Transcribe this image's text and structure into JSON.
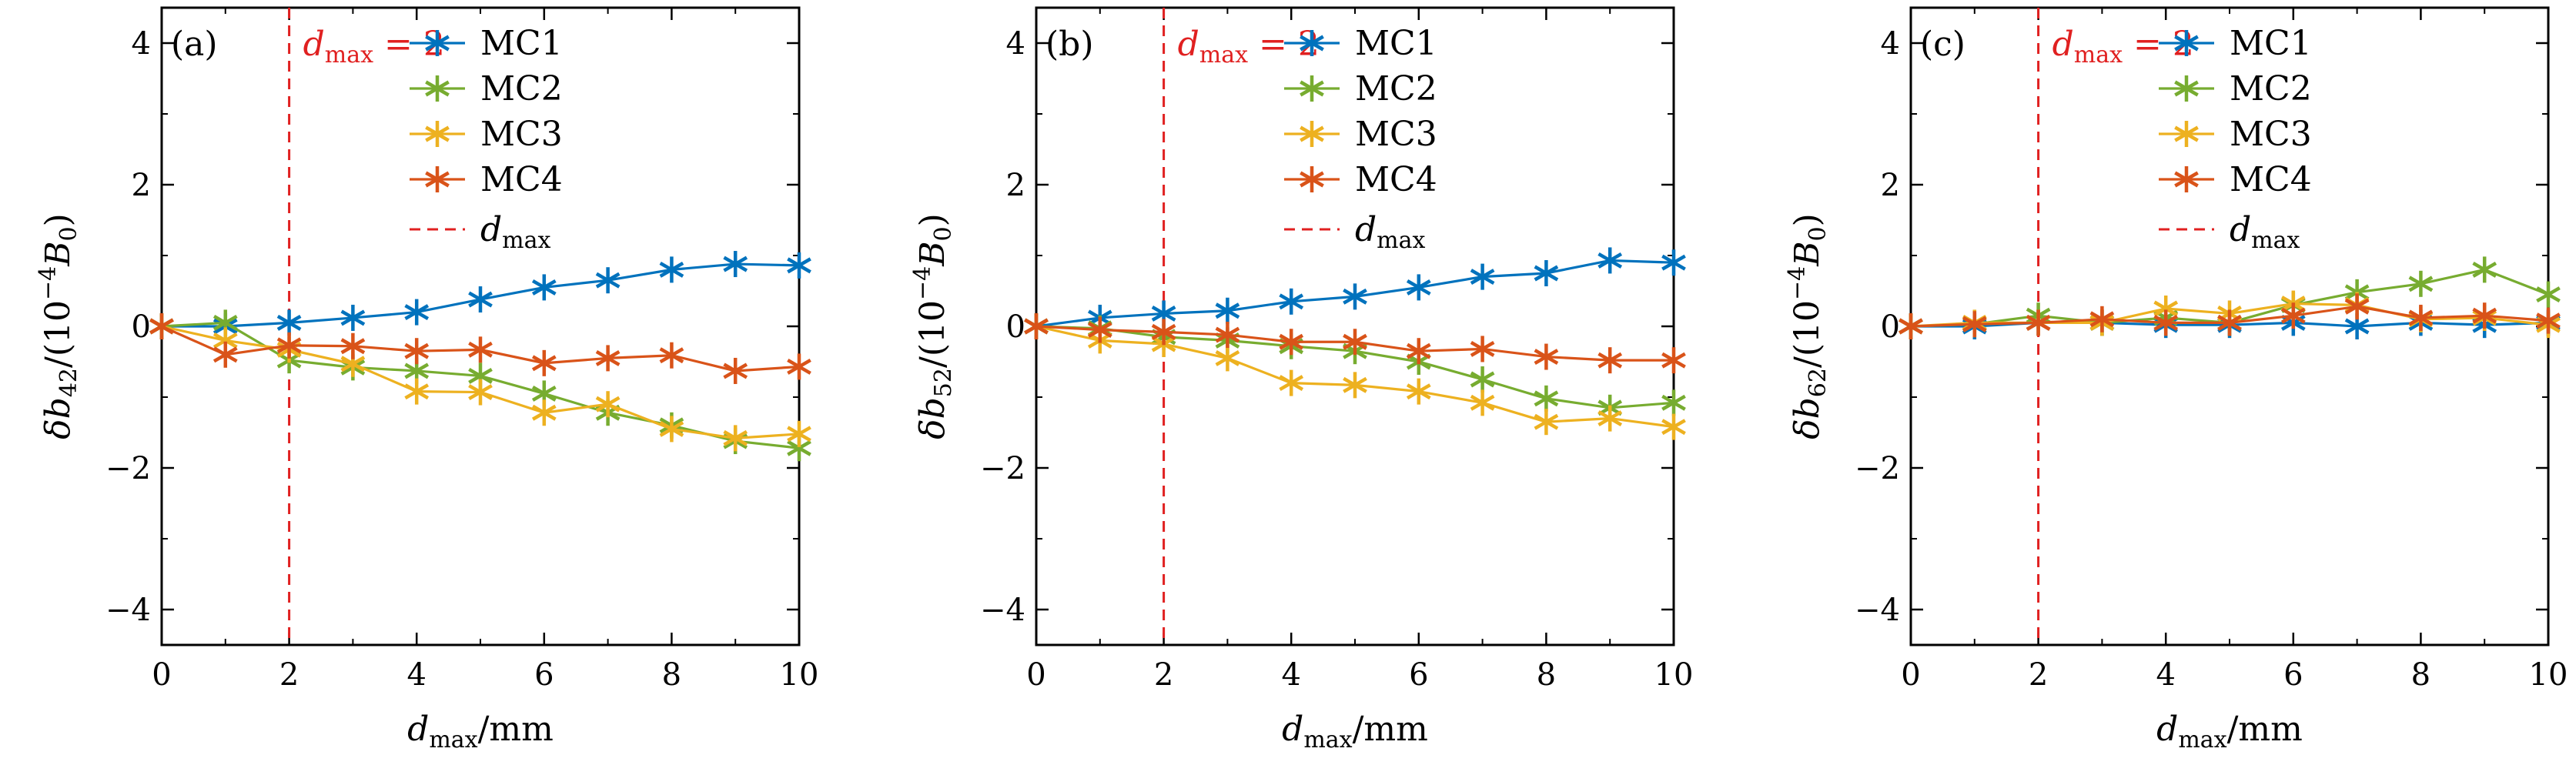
{
  "chart_data": [
    {
      "type": "line",
      "panel_label": "(a)",
      "xlabel": {
        "var": "d",
        "sub": "max",
        "rest": "/mm"
      },
      "ylabel": {
        "var": "δb",
        "sub": "42",
        "rest": "/(10",
        "sup": "−4",
        "rest2": "B",
        "sub2": "0",
        "close": ")"
      },
      "xlim": [
        0,
        10
      ],
      "ylim": [
        -4.5,
        4.5
      ],
      "x_ticks": [
        "0",
        "2",
        "4",
        "6",
        "8",
        "10"
      ],
      "y_ticks": [
        "−4",
        "−2",
        "0",
        "2",
        "4"
      ],
      "x": [
        0,
        1,
        2,
        3,
        4,
        5,
        6,
        7,
        8,
        9,
        10
      ],
      "series": [
        {
          "name": "MC1",
          "color": "#0072BD",
          "values": [
            0,
            0.0,
            0.05,
            0.12,
            0.2,
            0.38,
            0.55,
            0.65,
            0.8,
            0.88,
            0.86
          ]
        },
        {
          "name": "MC2",
          "color": "#77AC30",
          "values": [
            0,
            0.05,
            -0.48,
            -0.58,
            -0.63,
            -0.7,
            -0.95,
            -1.22,
            -1.4,
            -1.62,
            -1.72
          ]
        },
        {
          "name": "MC3",
          "color": "#EDB120",
          "values": [
            0,
            -0.2,
            -0.33,
            -0.53,
            -0.92,
            -0.93,
            -1.22,
            -1.1,
            -1.45,
            -1.58,
            -1.52
          ]
        },
        {
          "name": "MC4",
          "color": "#D95319",
          "values": [
            0,
            -0.4,
            -0.27,
            -0.28,
            -0.35,
            -0.33,
            -0.52,
            -0.45,
            -0.41,
            -0.63,
            -0.57
          ]
        }
      ],
      "vline": {
        "x": 2,
        "color": "#e02020",
        "label_var": "d",
        "label_sub": "max",
        "label_rest": " = 2",
        "legend_var": "d",
        "legend_sub": "max"
      }
    },
    {
      "type": "line",
      "panel_label": "(b)",
      "xlabel": {
        "var": "d",
        "sub": "max",
        "rest": "/mm"
      },
      "ylabel": {
        "var": "δb",
        "sub": "52",
        "rest": "/(10",
        "sup": "−4",
        "rest2": "B",
        "sub2": "0",
        "close": ")"
      },
      "xlim": [
        0,
        10
      ],
      "ylim": [
        -4.5,
        4.5
      ],
      "x_ticks": [
        "0",
        "2",
        "4",
        "6",
        "8",
        "10"
      ],
      "y_ticks": [
        "−4",
        "−2",
        "0",
        "2",
        "4"
      ],
      "x": [
        0,
        1,
        2,
        3,
        4,
        5,
        6,
        7,
        8,
        9,
        10
      ],
      "series": [
        {
          "name": "MC1",
          "color": "#0072BD",
          "values": [
            0,
            0.12,
            0.18,
            0.22,
            0.35,
            0.42,
            0.55,
            0.7,
            0.75,
            0.93,
            0.9
          ]
        },
        {
          "name": "MC2",
          "color": "#77AC30",
          "values": [
            0,
            -0.03,
            -0.15,
            -0.2,
            -0.28,
            -0.35,
            -0.5,
            -0.75,
            -1.02,
            -1.15,
            -1.08
          ]
        },
        {
          "name": "MC3",
          "color": "#EDB120",
          "values": [
            0,
            -0.2,
            -0.25,
            -0.45,
            -0.8,
            -0.83,
            -0.92,
            -1.08,
            -1.35,
            -1.3,
            -1.42
          ]
        },
        {
          "name": "MC4",
          "color": "#D95319",
          "values": [
            0,
            -0.05,
            -0.08,
            -0.12,
            -0.22,
            -0.22,
            -0.35,
            -0.32,
            -0.43,
            -0.48,
            -0.48
          ]
        }
      ],
      "vline": {
        "x": 2,
        "color": "#e02020",
        "label_var": "d",
        "label_sub": "max",
        "label_rest": " = 2",
        "legend_var": "d",
        "legend_sub": "max"
      }
    },
    {
      "type": "line",
      "panel_label": "(c)",
      "xlabel": {
        "var": "d",
        "sub": "max",
        "rest": "/mm"
      },
      "ylabel": {
        "var": "δb",
        "sub": "62",
        "rest": "/(10",
        "sup": "−4",
        "rest2": "B",
        "sub2": "0",
        "close": ")"
      },
      "xlim": [
        0,
        10
      ],
      "ylim": [
        -4.5,
        4.5
      ],
      "x_ticks": [
        "0",
        "2",
        "4",
        "6",
        "8",
        "10"
      ],
      "y_ticks": [
        "−4",
        "−2",
        "0",
        "2",
        "4"
      ],
      "x": [
        0,
        1,
        2,
        3,
        4,
        5,
        6,
        7,
        8,
        9,
        10
      ],
      "series": [
        {
          "name": "MC1",
          "color": "#0072BD",
          "values": [
            0,
            0.0,
            0.05,
            0.05,
            0.02,
            0.02,
            0.05,
            0.0,
            0.05,
            0.02,
            0.05
          ]
        },
        {
          "name": "MC2",
          "color": "#77AC30",
          "values": [
            0,
            0.03,
            0.15,
            0.05,
            0.12,
            0.05,
            0.3,
            0.48,
            0.6,
            0.8,
            0.45
          ]
        },
        {
          "name": "MC3",
          "color": "#EDB120",
          "values": [
            0,
            0.05,
            0.05,
            0.05,
            0.25,
            0.18,
            0.32,
            0.3,
            0.1,
            0.12,
            0.02
          ]
        },
        {
          "name": "MC4",
          "color": "#D95319",
          "values": [
            0,
            0.03,
            0.05,
            0.1,
            0.05,
            0.05,
            0.15,
            0.28,
            0.12,
            0.15,
            0.08
          ]
        }
      ],
      "vline": {
        "x": 2,
        "color": "#e02020",
        "label_var": "d",
        "label_sub": "max",
        "label_rest": " = 2",
        "legend_var": "d",
        "legend_sub": "max"
      }
    }
  ]
}
